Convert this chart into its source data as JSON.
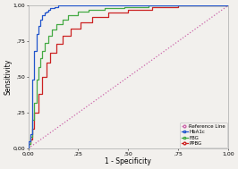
{
  "title": "",
  "xlabel": "1 - Specificity",
  "ylabel": "Sensitivity",
  "xlim": [
    0.0,
    1.0
  ],
  "ylim": [
    0.0,
    1.0
  ],
  "xticks": [
    0.0,
    0.25,
    0.5,
    0.75,
    1.0
  ],
  "yticks": [
    0.0,
    0.25,
    0.5,
    0.75,
    1.0
  ],
  "xticklabels": [
    "0,00",
    ",25",
    ",50",
    ",75",
    "1,00"
  ],
  "yticklabels": [
    "0,00",
    ",25",
    ",50",
    ",75",
    "1,00"
  ],
  "reference_line_color": "#cc66aa",
  "hba1c_color": "#2255cc",
  "fbg_color": "#44aa44",
  "ppbg_color": "#cc2222",
  "background_color": "#f2f0ed",
  "spine_color": "#aaaaaa",
  "legend_entries": [
    "Reference Line",
    "HbA1c",
    "FBG",
    "PPBG"
  ],
  "hba1c_curve": {
    "fpr": [
      0.0,
      0.0,
      0.01,
      0.01,
      0.02,
      0.02,
      0.03,
      0.03,
      0.04,
      0.04,
      0.05,
      0.05,
      0.06,
      0.06,
      0.07,
      0.07,
      0.08,
      0.08,
      0.09,
      0.09,
      0.1,
      0.1,
      0.11,
      0.11,
      0.13,
      0.13,
      0.15,
      0.15,
      0.18,
      0.18,
      0.22,
      0.22,
      0.3,
      0.3,
      0.4,
      0.4,
      0.55,
      0.55,
      0.7,
      0.7,
      1.0
    ],
    "tpr": [
      0.0,
      0.05,
      0.05,
      0.1,
      0.1,
      0.48,
      0.48,
      0.68,
      0.68,
      0.8,
      0.8,
      0.86,
      0.86,
      0.9,
      0.9,
      0.93,
      0.93,
      0.95,
      0.95,
      0.96,
      0.96,
      0.97,
      0.97,
      0.98,
      0.98,
      0.99,
      0.99,
      1.0,
      1.0,
      1.0,
      1.0,
      1.0,
      1.0,
      1.0,
      1.0,
      1.0,
      1.0,
      1.0,
      1.0,
      1.0,
      1.0
    ]
  },
  "fbg_curve": {
    "fpr": [
      0.0,
      0.0,
      0.01,
      0.01,
      0.02,
      0.02,
      0.03,
      0.03,
      0.04,
      0.04,
      0.05,
      0.05,
      0.06,
      0.06,
      0.07,
      0.07,
      0.08,
      0.08,
      0.1,
      0.1,
      0.12,
      0.12,
      0.14,
      0.14,
      0.17,
      0.17,
      0.2,
      0.2,
      0.25,
      0.25,
      0.3,
      0.3,
      0.38,
      0.38,
      0.48,
      0.48,
      0.6,
      0.6,
      0.75,
      0.75,
      1.0
    ],
    "tpr": [
      0.0,
      0.03,
      0.03,
      0.08,
      0.08,
      0.2,
      0.2,
      0.32,
      0.32,
      0.48,
      0.48,
      0.57,
      0.57,
      0.63,
      0.63,
      0.68,
      0.68,
      0.74,
      0.74,
      0.79,
      0.79,
      0.83,
      0.83,
      0.87,
      0.87,
      0.9,
      0.9,
      0.93,
      0.93,
      0.96,
      0.96,
      0.97,
      0.97,
      0.98,
      0.98,
      0.99,
      0.99,
      1.0,
      1.0,
      1.0,
      1.0
    ]
  },
  "ppbg_curve": {
    "fpr": [
      0.0,
      0.0,
      0.01,
      0.01,
      0.02,
      0.02,
      0.03,
      0.03,
      0.05,
      0.05,
      0.07,
      0.07,
      0.09,
      0.09,
      0.11,
      0.11,
      0.14,
      0.14,
      0.17,
      0.17,
      0.21,
      0.21,
      0.26,
      0.26,
      0.32,
      0.32,
      0.4,
      0.4,
      0.5,
      0.5,
      0.62,
      0.62,
      0.75,
      0.75,
      0.88,
      0.88,
      1.0
    ],
    "tpr": [
      0.0,
      0.03,
      0.03,
      0.06,
      0.06,
      0.14,
      0.14,
      0.25,
      0.25,
      0.38,
      0.38,
      0.5,
      0.5,
      0.6,
      0.6,
      0.67,
      0.67,
      0.73,
      0.73,
      0.79,
      0.79,
      0.84,
      0.84,
      0.88,
      0.88,
      0.92,
      0.92,
      0.95,
      0.95,
      0.97,
      0.97,
      0.99,
      0.99,
      1.0,
      1.0,
      1.0,
      1.0
    ]
  }
}
